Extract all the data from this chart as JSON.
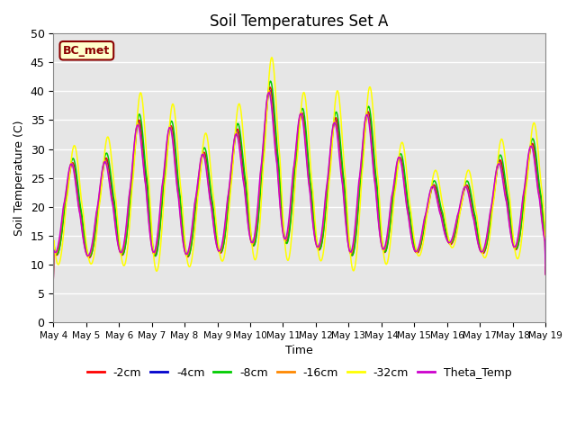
{
  "title": "Soil Temperatures Set A",
  "xlabel": "Time",
  "ylabel": "Soil Temperature (C)",
  "ylim": [
    0,
    50
  ],
  "yticks": [
    0,
    5,
    10,
    15,
    20,
    25,
    30,
    35,
    40,
    45,
    50
  ],
  "series": [
    {
      "label": "-2cm",
      "color": "#ff0000"
    },
    {
      "label": "-4cm",
      "color": "#0000cc"
    },
    {
      "label": "-8cm",
      "color": "#00cc00"
    },
    {
      "label": "-16cm",
      "color": "#ff8800"
    },
    {
      "label": "-32cm",
      "color": "#ffff00"
    },
    {
      "label": "Theta_Temp",
      "color": "#cc00cc"
    }
  ],
  "annotation_text": "BC_met",
  "background_color": "#e6e6e6",
  "line_width": 1.1,
  "start_day": 4,
  "n_days": 15,
  "points_per_day": 144,
  "trough_temps": [
    9.5,
    9.5,
    9.5,
    8.5,
    9.0,
    10.0,
    10.5,
    10.5,
    10.5,
    8.5,
    9.5,
    10.5,
    12.5,
    10.5,
    10.5
  ],
  "peak_temps": [
    33.0,
    27.0,
    32.5,
    41.0,
    33.5,
    30.0,
    39.5,
    46.5,
    33.5,
    41.0,
    38.0,
    25.0,
    25.0,
    25.0,
    33.0
  ],
  "peak_hour": 0.6,
  "trough_hour": 0.25
}
